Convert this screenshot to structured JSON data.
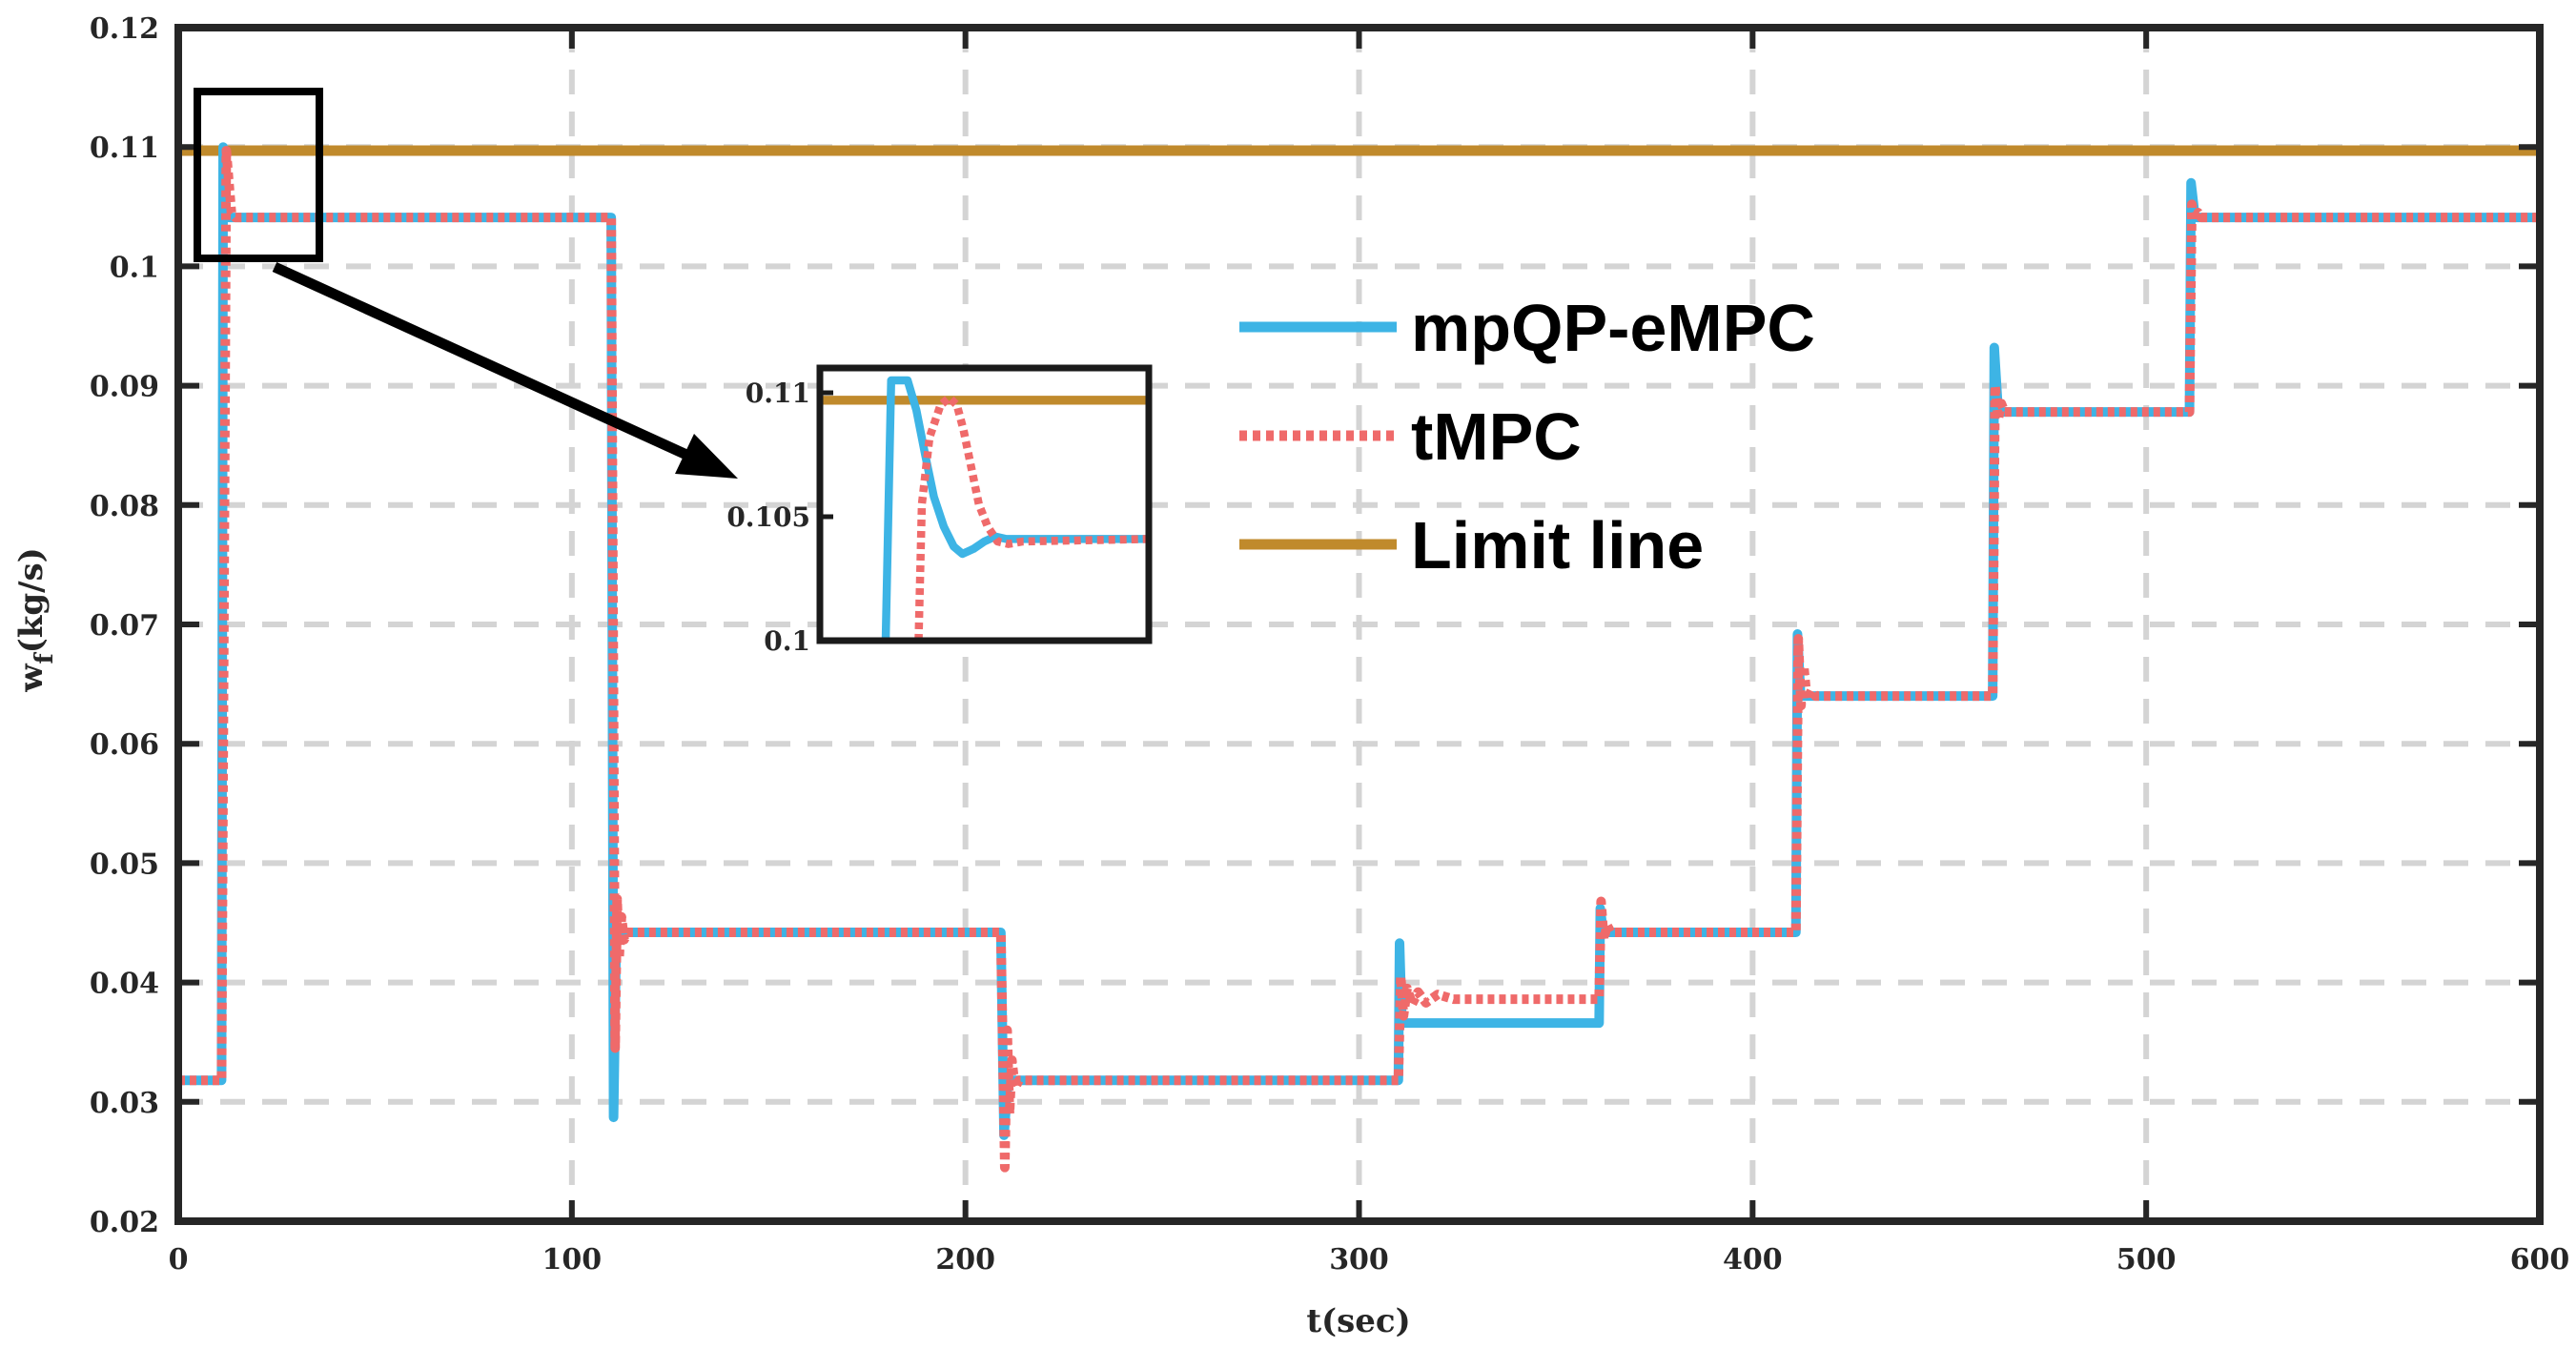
{
  "chart_data": {
    "type": "line",
    "title": "",
    "xlabel": "t(sec)",
    "ylabel_main": "w",
    "ylabel_sub": "f",
    "ylabel_unit": "(kg/s)",
    "xlim": [
      0,
      600
    ],
    "ylim": [
      0.02,
      0.12
    ],
    "grid": true,
    "x_ticks": [
      0,
      100,
      200,
      300,
      400,
      500,
      600
    ],
    "x_tick_labels": [
      "0",
      "100",
      "200",
      "300",
      "400",
      "500",
      "600"
    ],
    "y_ticks": [
      0.02,
      0.03,
      0.04,
      0.05,
      0.06,
      0.07,
      0.08,
      0.09,
      0.1,
      0.11,
      0.12
    ],
    "y_tick_labels": [
      "0.02",
      "0.03",
      "0.04",
      "0.05",
      "0.06",
      "0.07",
      "0.08",
      "0.09",
      "0.1",
      "0.11",
      "0.12"
    ],
    "legend_position": "upper-center-right",
    "series": [
      {
        "name": "mpQP-eMPC",
        "color": "#3db4e5",
        "style": "solid",
        "points": [
          [
            0,
            0.0318
          ],
          [
            11,
            0.0318
          ],
          [
            11.4,
            0.11
          ],
          [
            12.2,
            0.1041
          ],
          [
            110,
            0.1041
          ],
          [
            110.6,
            0.0287
          ],
          [
            111.3,
            0.0442
          ],
          [
            209,
            0.0442
          ],
          [
            209.8,
            0.0272
          ],
          [
            210.8,
            0.0318
          ],
          [
            310,
            0.0318
          ],
          [
            310.3,
            0.0433
          ],
          [
            310.9,
            0.0366
          ],
          [
            361,
            0.0366
          ],
          [
            361.3,
            0.0462
          ],
          [
            362,
            0.0442
          ],
          [
            411,
            0.0442
          ],
          [
            411.4,
            0.0692
          ],
          [
            412.2,
            0.064
          ],
          [
            461,
            0.064
          ],
          [
            461.4,
            0.0932
          ],
          [
            462.4,
            0.0878
          ],
          [
            511,
            0.0878
          ],
          [
            511.4,
            0.107
          ],
          [
            512.4,
            0.1041
          ],
          [
            600,
            0.1041
          ]
        ]
      },
      {
        "name": "tMPC",
        "color": "#ef6a6a",
        "style": "dotted",
        "points": [
          [
            0,
            0.0318
          ],
          [
            11,
            0.0318
          ],
          [
            12.2,
            0.1097
          ],
          [
            13.5,
            0.1045
          ],
          [
            14.5,
            0.1041
          ],
          [
            110,
            0.1041
          ],
          [
            111,
            0.0345
          ],
          [
            111.5,
            0.047
          ],
          [
            112,
            0.042
          ],
          [
            112.6,
            0.0455
          ],
          [
            113.3,
            0.0436
          ],
          [
            114.2,
            0.0442
          ],
          [
            209,
            0.0442
          ],
          [
            210,
            0.0245
          ],
          [
            210.6,
            0.036
          ],
          [
            211.2,
            0.029
          ],
          [
            211.8,
            0.0335
          ],
          [
            212.6,
            0.0312
          ],
          [
            213.6,
            0.0318
          ],
          [
            310,
            0.0318
          ],
          [
            310.6,
            0.0405
          ],
          [
            311.3,
            0.0372
          ],
          [
            312.2,
            0.0395
          ],
          [
            313.5,
            0.0382
          ],
          [
            315,
            0.0392
          ],
          [
            317,
            0.0383
          ],
          [
            320,
            0.039
          ],
          [
            324,
            0.0386
          ],
          [
            361,
            0.0386
          ],
          [
            361.5,
            0.0468
          ],
          [
            362.2,
            0.0436
          ],
          [
            363,
            0.0448
          ],
          [
            364,
            0.0442
          ],
          [
            411,
            0.0442
          ],
          [
            411.6,
            0.0688
          ],
          [
            412.3,
            0.0632
          ],
          [
            413,
            0.0665
          ],
          [
            413.8,
            0.0637
          ],
          [
            415,
            0.0645
          ],
          [
            416,
            0.064
          ],
          [
            461,
            0.064
          ],
          [
            461.6,
            0.09
          ],
          [
            462.4,
            0.0872
          ],
          [
            463.2,
            0.0885
          ],
          [
            464,
            0.0878
          ],
          [
            511,
            0.0878
          ],
          [
            511.6,
            0.1052
          ],
          [
            512.4,
            0.1038
          ],
          [
            513.2,
            0.1045
          ],
          [
            514,
            0.1041
          ],
          [
            600,
            0.1041
          ]
        ]
      },
      {
        "name": "Limit line",
        "color": "#c08a2c",
        "style": "solid",
        "points": [
          [
            0,
            0.1097
          ],
          [
            600,
            0.1097
          ]
        ]
      }
    ],
    "inset": {
      "xlim": [
        5,
        35
      ],
      "ylim": [
        0.1,
        0.111
      ],
      "y_ticks": [
        0.1,
        0.105,
        0.11
      ],
      "y_tick_labels": [
        "0.1",
        "0.105",
        "0.11"
      ],
      "series": [
        {
          "name": "mpQP-eMPC",
          "points": [
            [
              11,
              0.1
            ],
            [
              11.5,
              0.1105
            ],
            [
              13,
              0.1105
            ],
            [
              13.8,
              0.1093
            ],
            [
              14.6,
              0.1075
            ],
            [
              15.4,
              0.1058
            ],
            [
              16.3,
              0.1046
            ],
            [
              17.2,
              0.1038
            ],
            [
              18,
              0.1035
            ],
            [
              19,
              0.1037
            ],
            [
              20,
              0.104
            ],
            [
              21,
              0.1042
            ],
            [
              22,
              0.1041
            ],
            [
              35,
              0.1041
            ]
          ]
        },
        {
          "name": "tMPC",
          "points": [
            [
              14,
              0.1
            ],
            [
              14.3,
              0.1055
            ],
            [
              15,
              0.1082
            ],
            [
              16,
              0.1095
            ],
            [
              16.8,
              0.1098
            ],
            [
              17.5,
              0.1095
            ],
            [
              18.1,
              0.1085
            ],
            [
              18.8,
              0.107
            ],
            [
              19.5,
              0.1055
            ],
            [
              20.3,
              0.1046
            ],
            [
              21.2,
              0.104
            ],
            [
              22.2,
              0.1039
            ],
            [
              23.5,
              0.104
            ],
            [
              35,
              0.1041
            ]
          ]
        },
        {
          "name": "Limit line",
          "points": [
            [
              5,
              0.1097
            ],
            [
              35,
              0.1097
            ]
          ]
        }
      ]
    }
  }
}
